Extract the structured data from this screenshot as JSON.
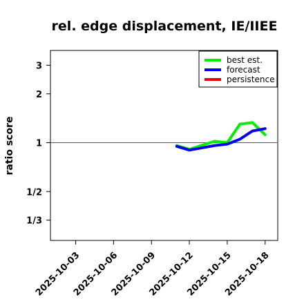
{
  "chart_data": {
    "type": "line",
    "title": "rel. edge displacement, IE/IIEE",
    "ylabel": "ratio score",
    "xlabel": "",
    "y_scale": "log",
    "y_ticks": [
      {
        "value": 0.3333,
        "label": "1/3"
      },
      {
        "value": 0.5,
        "label": "1/2"
      },
      {
        "value": 1,
        "label": "1"
      },
      {
        "value": 2,
        "label": "2"
      },
      {
        "value": 3,
        "label": "3"
      }
    ],
    "ylim": [
      0.25,
      3.7
    ],
    "x_ticks": [
      {
        "value": "2025-10-03",
        "label": "2025-10-03",
        "color": "#000000"
      },
      {
        "value": "2025-10-06",
        "label": "2025-10-06",
        "color": "#000000"
      },
      {
        "value": "2025-10-09",
        "label": "2025-10-09",
        "color": "#228b22"
      },
      {
        "value": "2025-10-12",
        "label": "2025-10-12",
        "color": "#000000"
      },
      {
        "value": "2025-10-15",
        "label": "2025-10-15",
        "color": "#000000"
      },
      {
        "value": "2025-10-18",
        "label": "2025-10-18",
        "color": "#000000"
      }
    ],
    "xlim": [
      "2025-10-01",
      "2025-10-19"
    ],
    "reference_line": 1,
    "legend_position": "top-right",
    "series": [
      {
        "name": "best est.",
        "color": "#00ee00",
        "points": [
          [
            "2025-10-11",
            0.96
          ],
          [
            "2025-10-12",
            0.91
          ],
          [
            "2025-10-14",
            1.02
          ],
          [
            "2025-10-15",
            1.0
          ],
          [
            "2025-10-16",
            1.3
          ],
          [
            "2025-10-17",
            1.33
          ],
          [
            "2025-10-18",
            1.12
          ]
        ]
      },
      {
        "name": "forecast",
        "color": "#0000ee",
        "points": [
          [
            "2025-10-11",
            0.95
          ],
          [
            "2025-10-12",
            0.9
          ],
          [
            "2025-10-14",
            0.96
          ],
          [
            "2025-10-15",
            0.98
          ],
          [
            "2025-10-16",
            1.05
          ],
          [
            "2025-10-17",
            1.18
          ],
          [
            "2025-10-18",
            1.22
          ]
        ]
      },
      {
        "name": "persistence",
        "color": "#ee0000",
        "points": []
      }
    ]
  }
}
